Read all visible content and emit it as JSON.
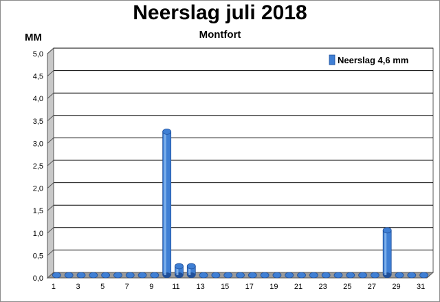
{
  "chart_data": {
    "type": "bar",
    "title": "Neerslag juli 2018",
    "subtitle": "Montfort",
    "ylabel": "MM",
    "xlabel": "",
    "ylim": [
      0,
      5
    ],
    "yticks": [
      "0,0",
      "0,5",
      "1,0",
      "1,5",
      "2,0",
      "2,5",
      "3,0",
      "3,5",
      "4,0",
      "4,5",
      "5,0"
    ],
    "categories": [
      1,
      2,
      3,
      4,
      5,
      6,
      7,
      8,
      9,
      10,
      11,
      12,
      13,
      14,
      15,
      16,
      17,
      18,
      19,
      20,
      21,
      22,
      23,
      24,
      25,
      26,
      27,
      28,
      29,
      30,
      31
    ],
    "xtick_labels": [
      "1",
      "3",
      "5",
      "7",
      "9",
      "11",
      "13",
      "15",
      "17",
      "19",
      "21",
      "23",
      "25",
      "27",
      "29",
      "31"
    ],
    "series": [
      {
        "name": "Neerslag 4,6 mm",
        "values": [
          0,
          0,
          0,
          0,
          0,
          0,
          0,
          0,
          0,
          3.2,
          0.2,
          0.2,
          0,
          0,
          0,
          0,
          0,
          0,
          0,
          0,
          0,
          0,
          0,
          0,
          0,
          0,
          0,
          1.0,
          0,
          0,
          0
        ]
      }
    ],
    "grid": true,
    "legend_position": "top-right",
    "colors": {
      "bar": "#3f7fd4",
      "bar_light": "#8fbdf0",
      "bar_dark": "#1f4f9a",
      "wall": "#c8c8c8"
    }
  }
}
